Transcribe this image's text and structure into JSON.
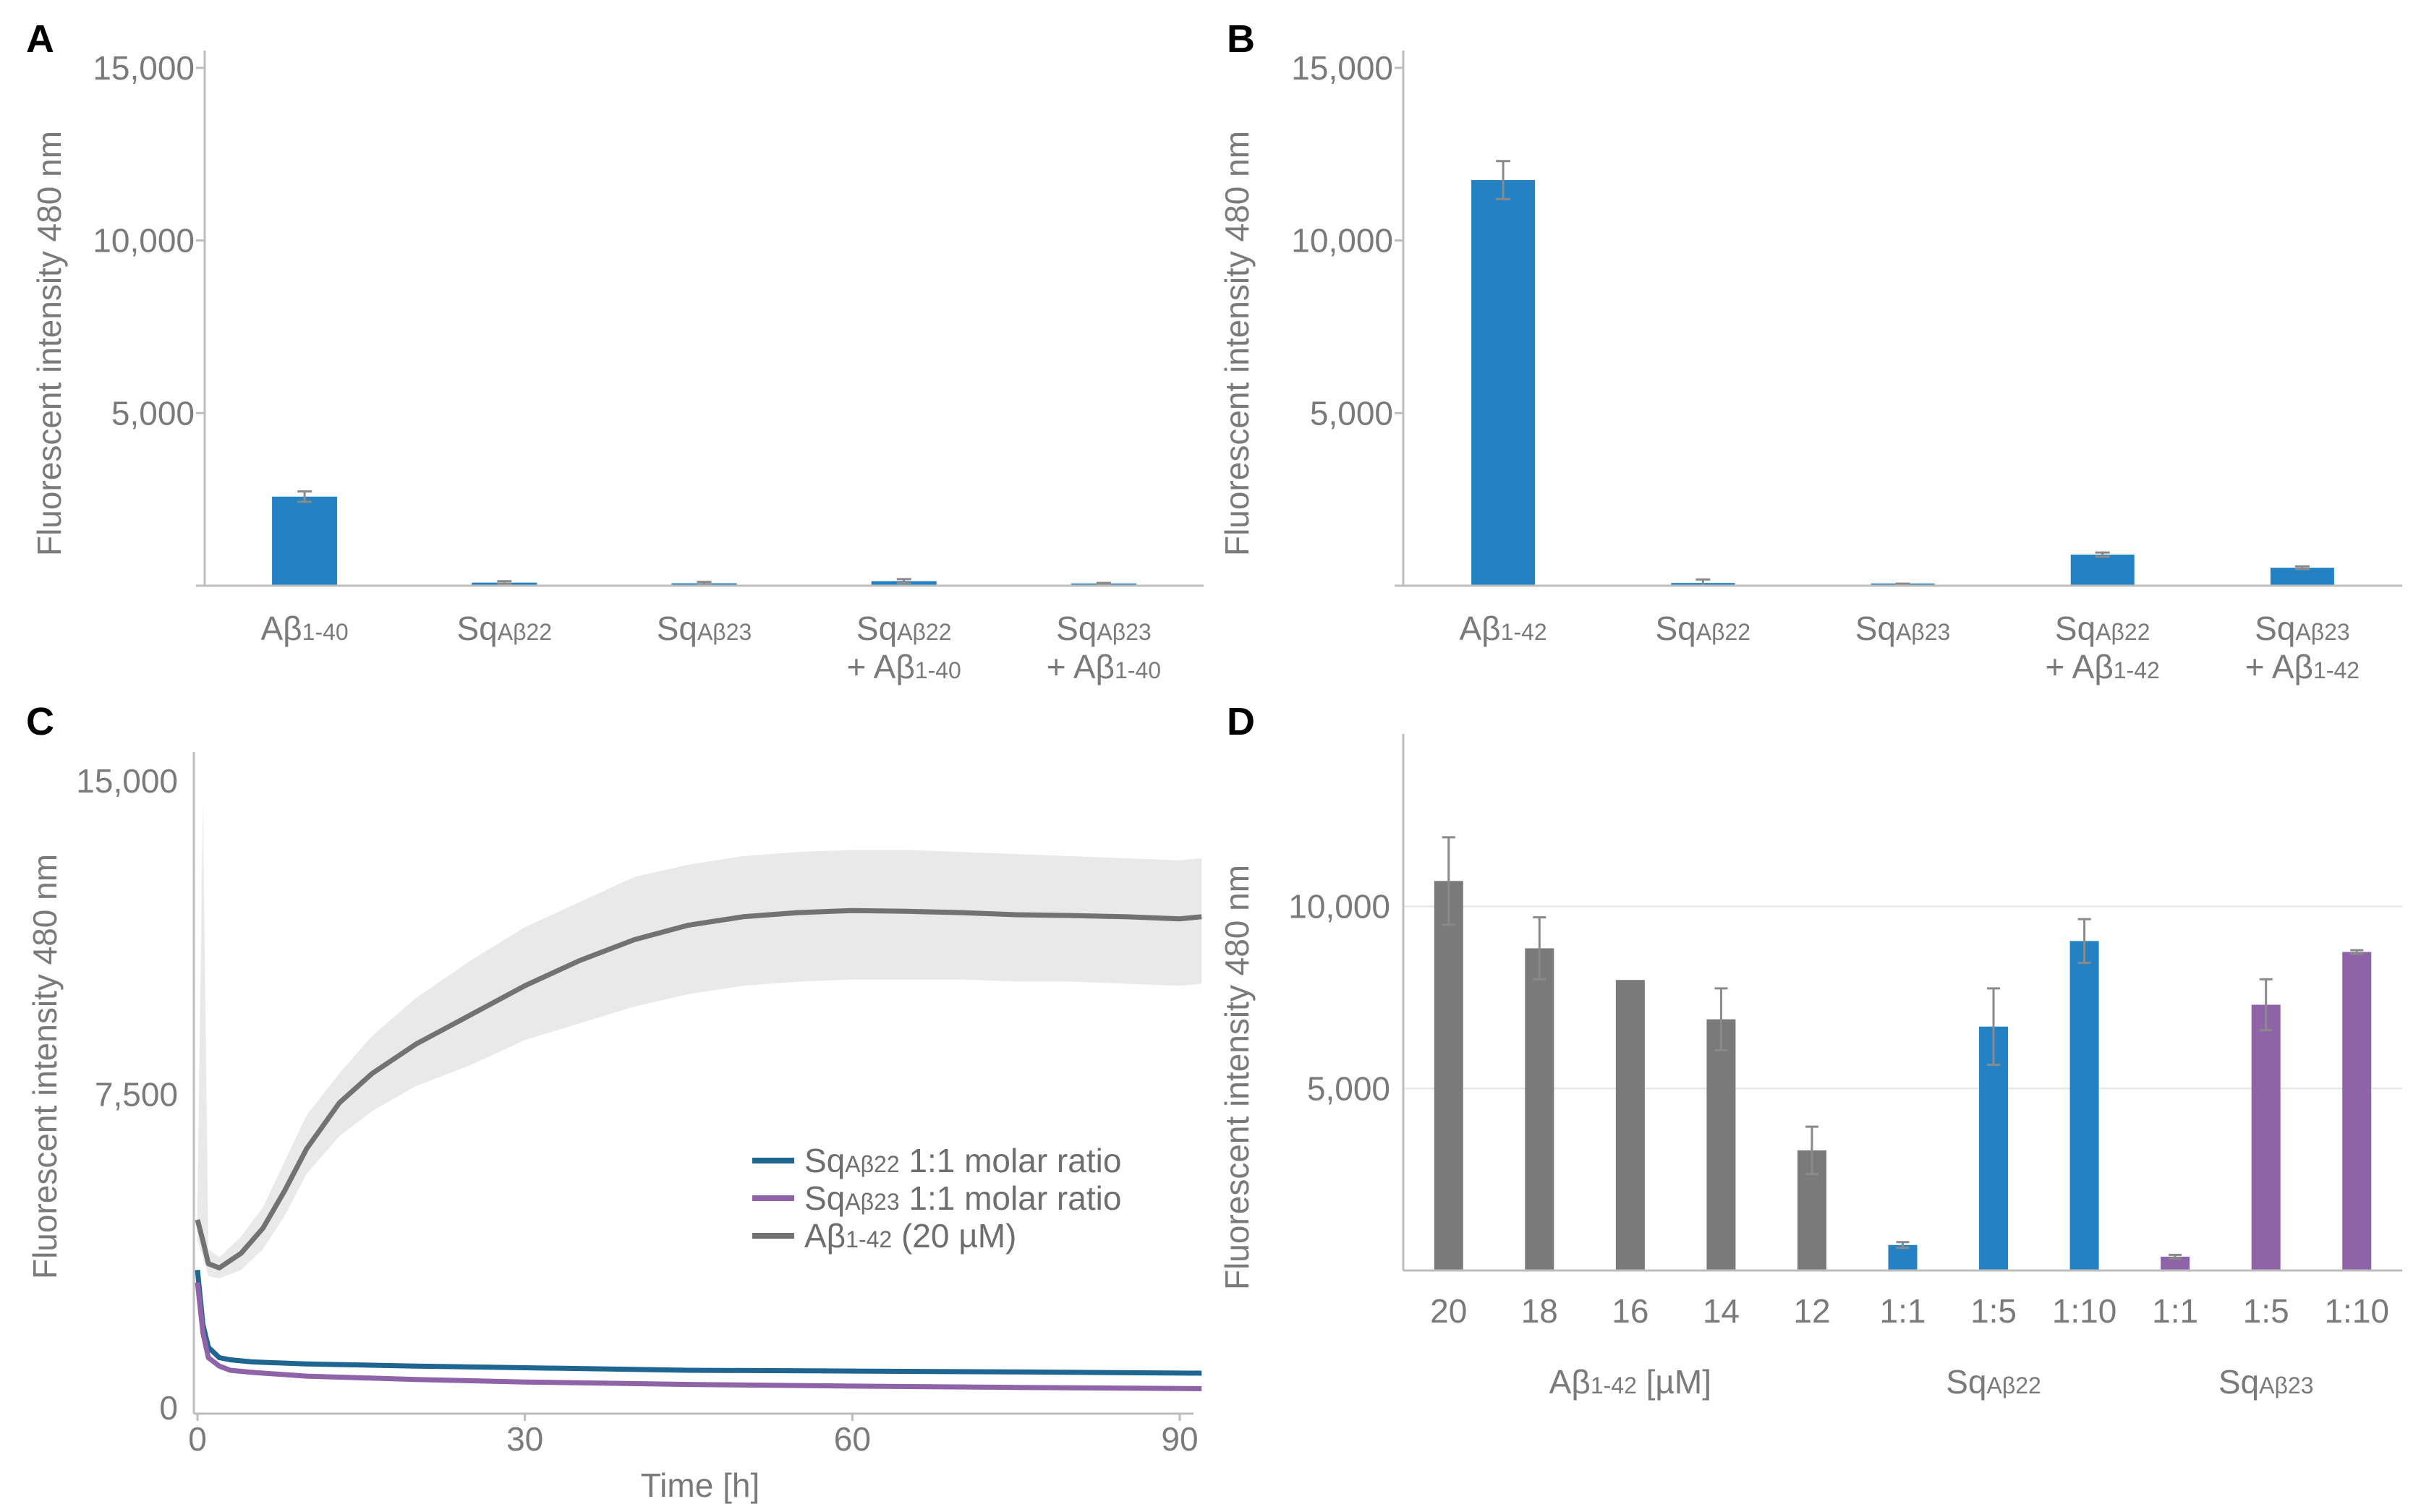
{
  "chart_data": [
    {
      "panel": "A",
      "type": "bar",
      "ylabel": "Fluorescent intensity 480 nm",
      "ylim": [
        0,
        15500
      ],
      "yticks": [
        5000,
        10000,
        15000
      ],
      "ytick_labels": [
        "5,000",
        "10,000",
        "15,000"
      ],
      "grid": false,
      "categories": [
        {
          "line1": [
            "Aβ",
            "1-40"
          ],
          "line2": null
        },
        {
          "line1": [
            "Sq",
            "Aβ22"
          ],
          "line2": null
        },
        {
          "line1": [
            "Sq",
            "Aβ23"
          ],
          "line2": null
        },
        {
          "line1": [
            "Sq",
            "Aβ22"
          ],
          "line2": [
            "+ Aβ",
            "1-40"
          ]
        },
        {
          "line1": [
            "Sq",
            "Aβ23"
          ],
          "line2": [
            "+ Aβ",
            "1-40"
          ]
        }
      ],
      "values": [
        2580,
        90,
        70,
        130,
        50
      ],
      "errors": [
        150,
        40,
        40,
        60,
        30
      ],
      "color": "#2381c4"
    },
    {
      "panel": "B",
      "type": "bar",
      "ylabel": "Fluorescent intensity 480 nm",
      "ylim": [
        0,
        15500
      ],
      "yticks": [
        5000,
        10000,
        15000
      ],
      "ytick_labels": [
        "5,000",
        "10,000",
        "15,000"
      ],
      "grid": false,
      "categories": [
        {
          "line1": [
            "Aβ",
            "1-42"
          ],
          "line2": null
        },
        {
          "line1": [
            "Sq",
            "Aβ22"
          ],
          "line2": null
        },
        {
          "line1": [
            "Sq",
            "Aβ23"
          ],
          "line2": null
        },
        {
          "line1": [
            "Sq",
            "Aβ22"
          ],
          "line2": [
            "+ Aβ",
            "1-42"
          ]
        },
        {
          "line1": [
            "Sq",
            "Aβ23"
          ],
          "line2": [
            "+ Aβ",
            "1-42"
          ]
        }
      ],
      "values": [
        11750,
        80,
        0,
        900,
        520
      ],
      "errors": [
        550,
        100,
        60,
        60,
        40
      ],
      "color": "#2381c4"
    },
    {
      "panel": "C",
      "type": "line",
      "xlabel": "Time [h]",
      "ylabel": "Fluorescent intensity 480 nm",
      "xlim": [
        0,
        92
      ],
      "ylim": [
        0,
        15500
      ],
      "xticks": [
        0,
        30,
        60,
        90
      ],
      "xtick_labels": [
        "0",
        "30",
        "60",
        "90"
      ],
      "yticks": [
        0,
        7500,
        15000
      ],
      "ytick_labels": [
        "0",
        "7,500",
        "15,000"
      ],
      "grid": false,
      "legend": "middle-right",
      "series": [
        {
          "name_main": "Sq",
          "name_sub": "Aβ22",
          "name_rest": " 1:1 molar ratio",
          "color": "#1f6592",
          "x": [
            0,
            0.5,
            1,
            2,
            3,
            5,
            10,
            20,
            30,
            45,
            60,
            75,
            92
          ],
          "y": [
            3300,
            2000,
            1450,
            1200,
            1150,
            1100,
            1050,
            1000,
            960,
            900,
            880,
            860,
            830
          ]
        },
        {
          "name_main": "Sq",
          "name_sub": "Aβ23",
          "name_rest": " 1:1 molar ratio",
          "color": "#8e63a8",
          "x": [
            0,
            0.5,
            1,
            2,
            3,
            5,
            10,
            20,
            30,
            45,
            60,
            75,
            92
          ],
          "y": [
            3000,
            1800,
            1200,
            1000,
            900,
            850,
            760,
            680,
            620,
            560,
            520,
            490,
            460
          ]
        },
        {
          "name_main": "Aβ",
          "name_sub": "1-42",
          "name_rest": " (20 µM)",
          "color": "#727272",
          "band_color": "#e9e9e9",
          "x": [
            0,
            0.5,
            1,
            2,
            4,
            6,
            8,
            10,
            13,
            16,
            20,
            25,
            30,
            35,
            40,
            45,
            50,
            55,
            60,
            65,
            70,
            75,
            80,
            85,
            90,
            92
          ],
          "y": [
            4500,
            4000,
            3450,
            3350,
            3700,
            4300,
            5200,
            6200,
            7300,
            8000,
            8700,
            9400,
            10100,
            10700,
            11200,
            11550,
            11750,
            11850,
            11900,
            11880,
            11850,
            11800,
            11780,
            11750,
            11700,
            11750
          ],
          "y_lower": [
            4000,
            3600,
            3150,
            3100,
            3300,
            3800,
            4600,
            5600,
            6500,
            7100,
            7700,
            8200,
            8800,
            9200,
            9600,
            9900,
            10100,
            10200,
            10250,
            10250,
            10250,
            10200,
            10200,
            10150,
            10100,
            10150
          ],
          "y_upper": [
            5000,
            14500,
            3800,
            3600,
            4100,
            4800,
            5900,
            7000,
            8000,
            8900,
            9800,
            10700,
            11500,
            12100,
            12700,
            13000,
            13200,
            13300,
            13350,
            13350,
            13300,
            13250,
            13200,
            13150,
            13100,
            13150
          ]
        }
      ]
    },
    {
      "panel": "D",
      "type": "bar",
      "ylabel": "Fluorescent intensity 480 nm",
      "ylim": [
        0,
        14500
      ],
      "yticks": [
        5000,
        10000
      ],
      "ytick_labels": [
        "5,000",
        "10,000"
      ],
      "grid": true,
      "categories": [
        "20",
        "18",
        "16",
        "14",
        "12",
        "1:1",
        "1:5",
        "1:10",
        "1:1",
        "1:5",
        "1:10"
      ],
      "values": [
        10700,
        8850,
        7980,
        6900,
        3300,
        700,
        6700,
        9050,
        380,
        7300,
        8750
      ],
      "errors": [
        1200,
        850,
        0,
        850,
        650,
        80,
        1050,
        600,
        50,
        700,
        50
      ],
      "bar_colors": [
        "#7a7a7a",
        "#7a7a7a",
        "#7a7a7a",
        "#7a7a7a",
        "#7a7a7a",
        "#2381c4",
        "#2381c4",
        "#2381c4",
        "#8e63a8",
        "#8e63a8",
        "#8e63a8"
      ],
      "groups": [
        {
          "main": "Aβ",
          "sub": "1-42",
          "rest": " [µM]",
          "from": 0,
          "to": 4
        },
        {
          "main": "Sq",
          "sub": "Aβ22",
          "rest": "",
          "from": 5,
          "to": 7
        },
        {
          "main": "Sq",
          "sub": "Aβ23",
          "rest": "",
          "from": 8,
          "to": 10
        }
      ]
    }
  ],
  "panel_letters": [
    "A",
    "B",
    "C",
    "D"
  ]
}
